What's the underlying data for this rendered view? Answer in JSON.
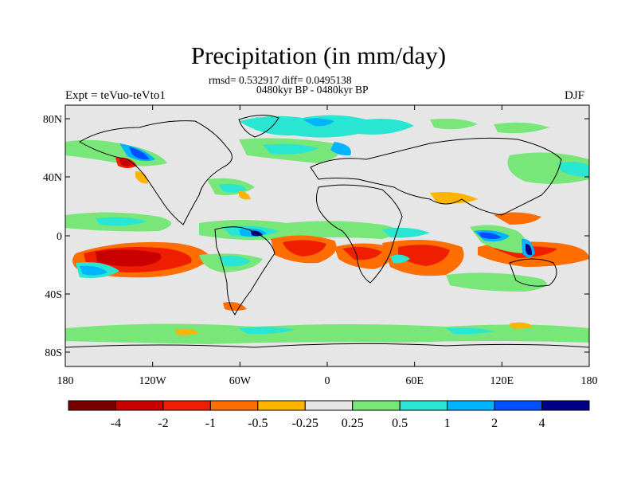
{
  "title": "Precipitation (in mm/day)",
  "stats_line": "rmsd= 0.532917 diff= 0.0495138",
  "period_line": "0480kyr BP - 0480kyr BP",
  "expt_label": "Expt = teVuo-teVto1",
  "season_label": "DJF",
  "y_ticks": [
    "80N",
    "40N",
    "0",
    "40S",
    "80S"
  ],
  "x_ticks": [
    "180",
    "120W",
    "60W",
    "0",
    "60E",
    "120E",
    "180"
  ],
  "colorbar": {
    "labels": [
      "-4",
      "-2",
      "-1",
      "-0.5",
      "-0.25",
      "0.25",
      "0.5",
      "1",
      "2",
      "4"
    ],
    "colors": [
      "#7a0000",
      "#c80000",
      "#f01e00",
      "#ff6e00",
      "#ffb400",
      "#e6e6e6",
      "#78e678",
      "#28e6d2",
      "#00b4ff",
      "#0050ff",
      "#000087"
    ]
  },
  "background_color": "#e6e6e6"
}
